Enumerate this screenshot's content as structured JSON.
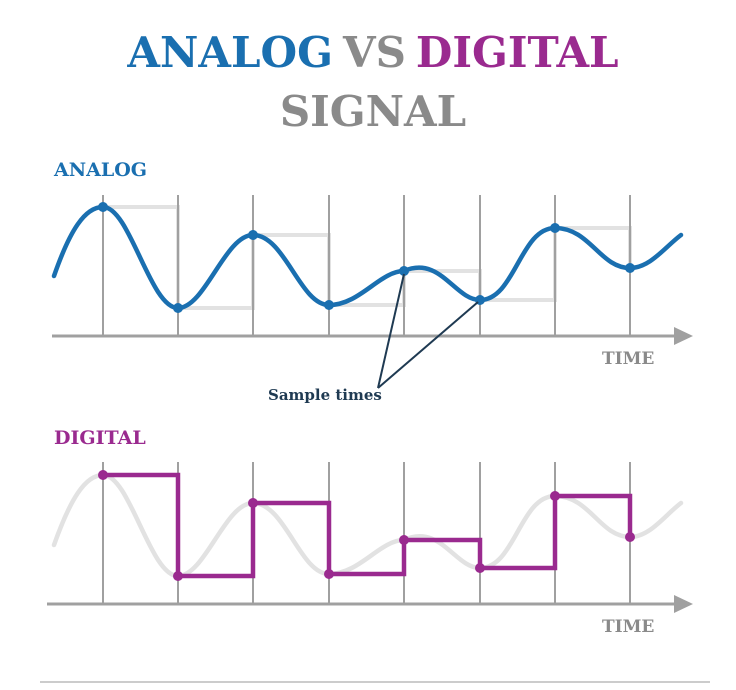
{
  "title": {
    "part1": "ANALOG",
    "part2": "VS",
    "part3": "DIGITAL",
    "line2": "SIGNAL"
  },
  "panels": {
    "analog": {
      "label": "ANALOG",
      "axis_label": "TIME"
    },
    "digital": {
      "label": "DIGITAL",
      "axis_label": "TIME"
    }
  },
  "annotation": {
    "text": "Sample times"
  },
  "colors": {
    "analog": "#1a6fb0",
    "digital": "#9a2a8f",
    "gray_text": "#8a8a8a",
    "axis": "#a0a0a0",
    "ghost": "#e2e2e2",
    "annotation": "#1f3a52"
  }
}
